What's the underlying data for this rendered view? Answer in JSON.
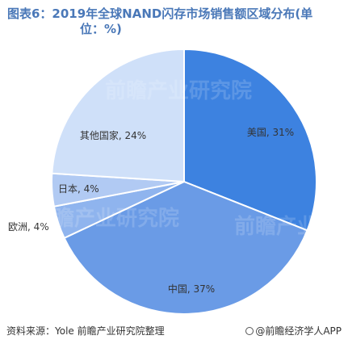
{
  "title": {
    "line1": "图表6：2019年全球NAND闪存市场销售额区域分布(单",
    "line2": "位：%)"
  },
  "footer": {
    "source": "资料来源：Yole 前瞻产业研究院整理",
    "brand": "@前瞻经济学人APP"
  },
  "watermark": "前瞻产业研究院",
  "chart_data": {
    "type": "pie",
    "title": "图表6：2019年全球NAND闪存市场销售额区域分布(单位：%)",
    "slices": [
      {
        "label": "美国",
        "value": 31,
        "display": "美国, 31%",
        "color": "#3d82e0"
      },
      {
        "label": "中国",
        "value": 37,
        "display": "中国, 37%",
        "color": "#6a9be6"
      },
      {
        "label": "欧洲",
        "value": 4,
        "display": "欧洲, 4%",
        "color": "#8fb4ee"
      },
      {
        "label": "日本",
        "value": 4,
        "display": "日本, 4%",
        "color": "#b1caf3"
      },
      {
        "label": "其他国家",
        "value": 24,
        "display": "其他国家, 24%",
        "color": "#cfe0f9"
      }
    ],
    "legend": "none"
  }
}
